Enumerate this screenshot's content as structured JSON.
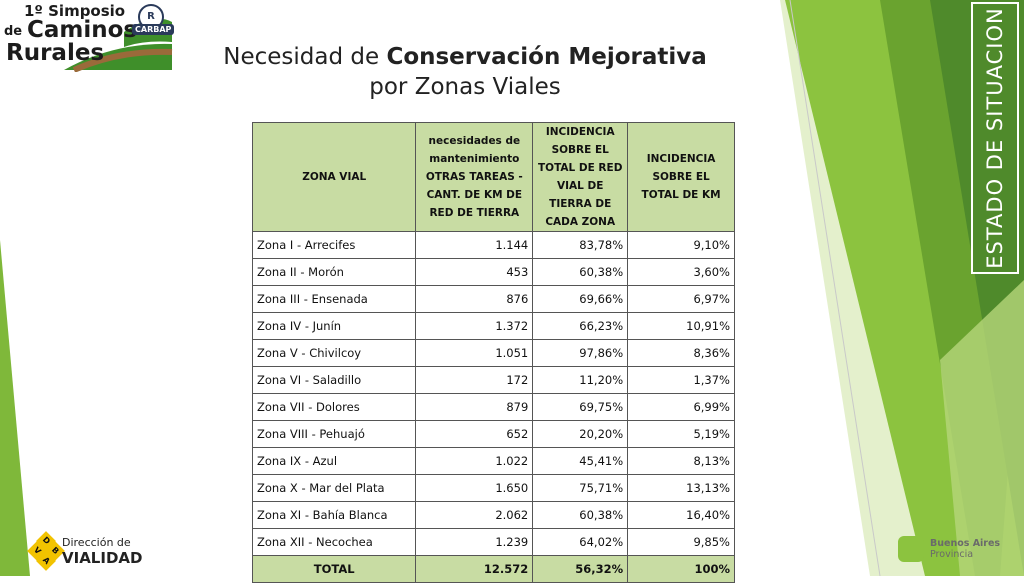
{
  "logo": {
    "line1": "1º Simposio",
    "line2a": "de",
    "line2b": "Caminos",
    "line3": "Rurales",
    "badge_letter": "R",
    "badge_text": "CARBAP"
  },
  "title": {
    "prefix": "Necesidad de ",
    "bold": "Conservación Mejorativa",
    "line2": "por Zonas Viales"
  },
  "side_label": "ESTADO DE SITUACION",
  "table": {
    "headers": [
      "ZONA VIAL",
      "necesidades de mantenimiento OTRAS TAREAS - CANT. DE KM DE RED DE TIERRA",
      "INCIDENCIA SOBRE EL TOTAL DE RED VIAL DE TIERRA DE CADA ZONA",
      "INCIDENCIA SOBRE EL TOTAL DE KM"
    ],
    "rows": [
      [
        "Zona I - Arrecifes",
        "1.144",
        "83,78%",
        "9,10%"
      ],
      [
        "Zona II - Morón",
        "453",
        "60,38%",
        "3,60%"
      ],
      [
        "Zona III - Ensenada",
        "876",
        "69,66%",
        "6,97%"
      ],
      [
        "Zona IV - Junín",
        "1.372",
        "66,23%",
        "10,91%"
      ],
      [
        "Zona V - Chivilcoy",
        "1.051",
        "97,86%",
        "8,36%"
      ],
      [
        "Zona VI - Saladillo",
        "172",
        "11,20%",
        "1,37%"
      ],
      [
        "Zona VII - Dolores",
        "879",
        "69,75%",
        "6,99%"
      ],
      [
        "Zona VIII - Pehuajó",
        "652",
        "20,20%",
        "5,19%"
      ],
      [
        "Zona IX - Azul",
        "1.022",
        "45,41%",
        "8,13%"
      ],
      [
        "Zona X - Mar del Plata",
        "1.650",
        "75,71%",
        "13,13%"
      ],
      [
        "Zona XI - Bahía Blanca",
        "2.062",
        "60,38%",
        "16,40%"
      ],
      [
        "Zona XII - Necochea",
        "1.239",
        "64,02%",
        "9,85%"
      ]
    ],
    "total": [
      "TOTAL",
      "12.572",
      "56,32%",
      "100%"
    ]
  },
  "footer_left": {
    "letters": [
      "D",
      "V",
      "B",
      "A"
    ],
    "line1": "Dirección de",
    "line2": "VIALIDAD"
  },
  "footer_right": {
    "line1": "Buenos Aires",
    "line2": "Provincia"
  },
  "colors": {
    "accent_green": "#4f8a2b",
    "header_green": "#c8dca3",
    "light_green": "#8cc33f"
  }
}
